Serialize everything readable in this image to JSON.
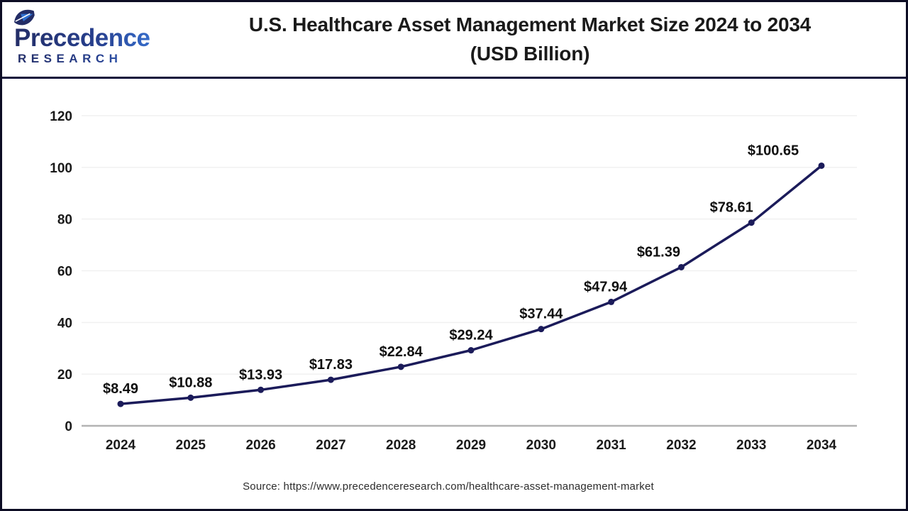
{
  "header": {
    "logo": {
      "name": "Precedence",
      "subtitle": "RESEARCH"
    },
    "title_line1": "U.S. Healthcare Asset Management Market Size 2024 to 2034",
    "title_line2": "(USD Billion)"
  },
  "chart_data": {
    "type": "line",
    "title": "U.S. Healthcare Asset Management Market Size 2024 to 2034 (USD Billion)",
    "categories": [
      "2024",
      "2025",
      "2026",
      "2027",
      "2028",
      "2029",
      "2030",
      "2031",
      "2032",
      "2033",
      "2034"
    ],
    "values": [
      8.49,
      10.88,
      13.93,
      17.83,
      22.84,
      29.24,
      37.44,
      47.94,
      61.39,
      78.61,
      100.65
    ],
    "point_labels": [
      "$8.49",
      "$10.88",
      "$13.93",
      "$17.83",
      "$22.84",
      "$29.24",
      "$37.44",
      "$47.94",
      "$61.39",
      "$78.61",
      "$100.65"
    ],
    "xlabel": "",
    "ylabel": "",
    "ylim": [
      0,
      120
    ],
    "yticks": [
      0,
      20,
      40,
      60,
      80,
      100,
      120
    ],
    "grid": true,
    "legend": "none",
    "line_color": "#1b1b5a",
    "marker_color": "#1b1b5a",
    "grid_color": "#f0f0f0",
    "baseline_color": "#b3b3b3",
    "tick_label_color": "#1a1a1a",
    "data_label_color": "#0f0f0f",
    "label_dx": [
      0,
      0,
      0,
      0,
      0,
      0,
      0,
      -8,
      -32,
      -28,
      -68
    ]
  },
  "footer": {
    "source": "Source: https://www.precedenceresearch.com/healthcare-asset-management-market"
  },
  "colors": {
    "border": "#0d0d24",
    "divider": "#10103a",
    "logo_dark": "#232d66",
    "logo_blue": "#3b7ce0",
    "leaf_accent": "#2f6fd0"
  }
}
